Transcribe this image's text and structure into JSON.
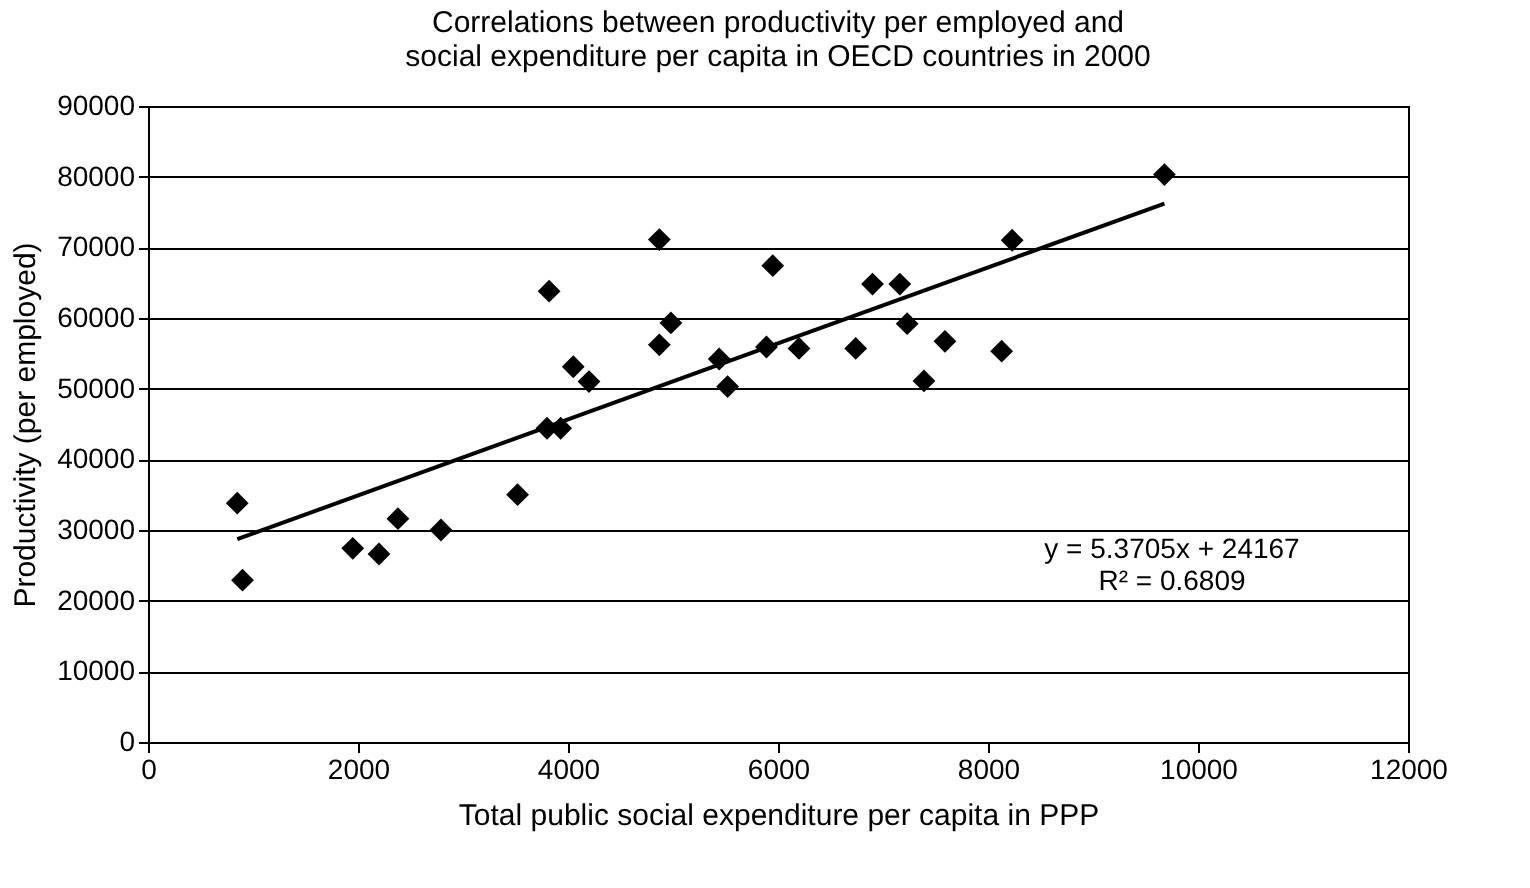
{
  "chart_data": {
    "type": "scatter",
    "title": "Correlations between productivity per employed and social expenditure per capita in OECD countries in 2000",
    "xlabel": "Total public social expenditure per capita in PPP",
    "ylabel": "Productivity (per employed)",
    "xlim": [
      0,
      12000
    ],
    "xticks": [
      0,
      2000,
      4000,
      6000,
      8000,
      10000,
      12000
    ],
    "ylim": [
      0,
      90000
    ],
    "yticks": [
      0,
      10000,
      20000,
      30000,
      40000,
      50000,
      60000,
      70000,
      80000,
      90000
    ],
    "grid": "y",
    "series": [
      {
        "type": "scatter",
        "marker": "diamond",
        "color": "#000000",
        "x": [
          850,
          900,
          1950,
          2200,
          2380,
          2790,
          3520,
          3820,
          3800,
          3930,
          4050,
          4200,
          4870,
          4870,
          4980,
          5440,
          5520,
          5890,
          5950,
          6200,
          6740,
          6900,
          7160,
          7230,
          7590,
          7390,
          8130,
          8230,
          9680
        ],
        "values": [
          33800,
          22900,
          27400,
          26600,
          31600,
          30000,
          35000,
          63800,
          44400,
          44400,
          53100,
          51000,
          71100,
          56200,
          59300,
          54200,
          50300,
          55900,
          67400,
          55700,
          55700,
          64800,
          64800,
          59200,
          56700,
          51100,
          55300,
          71000,
          80300
        ]
      },
      {
        "type": "line",
        "color": "#000000",
        "x": [
          850,
          9680
        ],
        "values": [
          28700,
          76200
        ]
      }
    ],
    "annotations": [
      "y = 5.3705x + 24167",
      "R² = 0.6809"
    ]
  }
}
